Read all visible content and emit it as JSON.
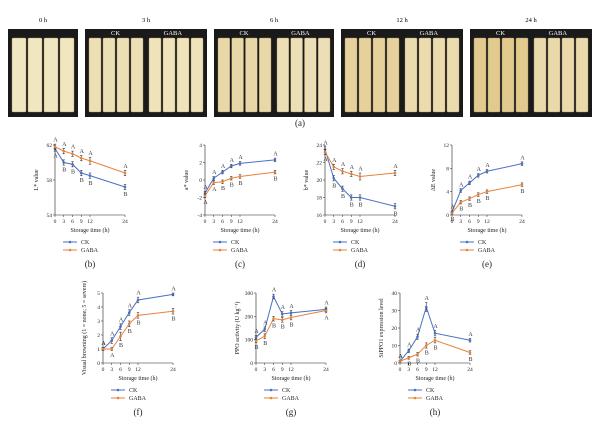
{
  "photos": {
    "panel_label": "(a)",
    "groups": [
      {
        "time": "0 h",
        "ck_label": "",
        "gaba_label": ""
      },
      {
        "time": "3 h",
        "ck_label": "CK",
        "gaba_label": "GABA"
      },
      {
        "time": "6 h",
        "ck_label": "CK",
        "gaba_label": "GABA"
      },
      {
        "time": "12 h",
        "ck_label": "CK",
        "gaba_label": "GABA"
      },
      {
        "time": "24 h",
        "ck_label": "CK",
        "gaba_label": "GABA"
      }
    ],
    "colors": {
      "background": "#1a1a1a",
      "strip_fresh": "#f0e6c0",
      "strip_brown": "#e2c98e"
    }
  },
  "colors": {
    "ck": "#4a6fc8",
    "gaba": "#e8823a"
  },
  "chart_data": [
    {
      "type": "line",
      "panel": "(b)",
      "xlabel": "Storage time (h)",
      "ylabel": "L* value",
      "x": [
        0,
        3,
        6,
        9,
        12,
        24
      ],
      "xticks": [
        "0",
        "3",
        "6",
        "9",
        "12",
        "24"
      ],
      "ylim": [
        54,
        62
      ],
      "yticks": [
        54,
        58,
        62
      ],
      "series": [
        {
          "name": "CK",
          "values": [
            61.6,
            60.0,
            59.8,
            58.8,
            58.5,
            57.2
          ],
          "err": [
            0.3,
            0.3,
            0.3,
            0.3,
            0.3,
            0.3
          ],
          "sig": [
            "A",
            "B",
            "B",
            "B",
            "B",
            "B"
          ]
        },
        {
          "name": "GABA",
          "values": [
            61.8,
            61.3,
            61.0,
            60.5,
            60.2,
            58.8
          ],
          "err": [
            0.3,
            0.3,
            0.3,
            0.3,
            0.4,
            0.3
          ],
          "sig": [
            "A",
            "A",
            "A",
            "A",
            "A",
            "A"
          ]
        }
      ]
    },
    {
      "type": "line",
      "panel": "(c)",
      "xlabel": "Storage time (h)",
      "ylabel": "a* value",
      "x": [
        0,
        3,
        6,
        9,
        12,
        24
      ],
      "xticks": [
        "0",
        "3",
        "6",
        "9",
        "12",
        "24"
      ],
      "ylim": [
        -4,
        4
      ],
      "yticks": [
        -4,
        -2,
        0,
        2,
        4
      ],
      "series": [
        {
          "name": "CK",
          "values": [
            -1.5,
            0.2,
            0.9,
            1.6,
            1.9,
            2.3
          ],
          "err": [
            0.2,
            0.2,
            0.2,
            0.2,
            0.2,
            0.2
          ],
          "sig": [
            "A",
            "A",
            "A",
            "A",
            "A",
            "A"
          ]
        },
        {
          "name": "GABA",
          "values": [
            -1.8,
            -0.3,
            -0.2,
            0.2,
            0.4,
            0.9
          ],
          "err": [
            0.2,
            0.2,
            0.2,
            0.2,
            0.2,
            0.2
          ],
          "sig": [
            "A",
            "A",
            "B",
            "B",
            "B",
            "B"
          ]
        }
      ]
    },
    {
      "type": "line",
      "panel": "(d)",
      "xlabel": "Storage time (h)",
      "ylabel": "b* value",
      "x": [
        0,
        3,
        6,
        9,
        12,
        24
      ],
      "xticks": [
        "0",
        "3",
        "6",
        "9",
        "12",
        "24"
      ],
      "ylim": [
        16,
        24
      ],
      "yticks": [
        16,
        18,
        20,
        22,
        24
      ],
      "series": [
        {
          "name": "CK",
          "values": [
            23.5,
            20.2,
            19.0,
            18.0,
            18.0,
            17.0
          ],
          "err": [
            0.3,
            0.3,
            0.3,
            0.3,
            0.3,
            0.3
          ],
          "sig": [
            "A",
            "B",
            "B",
            "B",
            "B",
            "B"
          ]
        },
        {
          "name": "GABA",
          "values": [
            23.2,
            21.5,
            21.0,
            20.7,
            20.4,
            20.8
          ],
          "err": [
            0.3,
            0.3,
            0.3,
            0.3,
            0.4,
            0.3
          ],
          "sig": [
            "A",
            "A",
            "A",
            "A",
            "A",
            "A"
          ]
        }
      ]
    },
    {
      "type": "line",
      "panel": "(e)",
      "xlabel": "Storage time (h)",
      "ylabel": "ΔE value",
      "x": [
        0,
        3,
        6,
        9,
        12,
        24
      ],
      "xticks": [
        "0",
        "3",
        "6",
        "9",
        "12",
        "24"
      ],
      "ylim": [
        0,
        12
      ],
      "yticks": [
        0,
        4,
        8,
        12
      ],
      "series": [
        {
          "name": "CK",
          "values": [
            0.5,
            4.2,
            5.5,
            6.8,
            7.5,
            8.8
          ],
          "err": [
            0.2,
            0.3,
            0.3,
            0.3,
            0.3,
            0.3
          ],
          "sig": [
            "A",
            "A",
            "A",
            "A",
            "A",
            "A"
          ]
        },
        {
          "name": "GABA",
          "values": [
            0.3,
            2.2,
            2.8,
            3.5,
            4.0,
            5.2
          ],
          "err": [
            0.2,
            0.3,
            0.3,
            0.3,
            0.3,
            0.3
          ],
          "sig": [
            "B",
            "B",
            "B",
            "B",
            "B",
            "B"
          ]
        }
      ]
    },
    {
      "type": "line",
      "panel": "(f)",
      "xlabel": "Storage time (h)",
      "ylabel": "Visual browning (1 = none; 5 = severe)",
      "x": [
        0,
        3,
        6,
        9,
        12,
        24
      ],
      "xticks": [
        "0",
        "3",
        "6",
        "9",
        "12",
        "24"
      ],
      "ylim": [
        0,
        5
      ],
      "yticks": [
        0,
        1,
        2,
        3,
        4,
        5
      ],
      "series": [
        {
          "name": "CK",
          "values": [
            1.0,
            1.6,
            2.6,
            3.6,
            4.5,
            4.9
          ],
          "err": [
            0.1,
            0.2,
            0.2,
            0.2,
            0.2,
            0.1
          ],
          "sig": [
            "A",
            "A",
            "A",
            "A",
            "A",
            "A"
          ]
        },
        {
          "name": "GABA",
          "values": [
            1.0,
            1.0,
            1.9,
            2.8,
            3.4,
            3.7
          ],
          "err": [
            0.1,
            0.1,
            0.3,
            0.2,
            0.2,
            0.2
          ],
          "sig": [
            "A",
            "A",
            "B",
            "B",
            "B",
            "B"
          ]
        }
      ]
    },
    {
      "type": "line",
      "panel": "(g)",
      "xlabel": "Storage time (h)",
      "ylabel": "PPO activity (U kg⁻¹)",
      "x": [
        0,
        3,
        6,
        9,
        12,
        24
      ],
      "xticks": [
        "0",
        "3",
        "6",
        "9",
        "12",
        "24"
      ],
      "ylim": [
        0,
        300
      ],
      "yticks": [
        0,
        100,
        200,
        300
      ],
      "series": [
        {
          "name": "CK",
          "values": [
            110,
            145,
            285,
            210,
            215,
            230
          ],
          "err": [
            8,
            10,
            10,
            10,
            10,
            10
          ],
          "sig": [
            "A",
            "A",
            "A",
            "A",
            "A",
            "A"
          ]
        },
        {
          "name": "GABA",
          "values": [
            95,
            115,
            190,
            185,
            195,
            225
          ],
          "err": [
            8,
            10,
            10,
            10,
            10,
            10
          ],
          "sig": [
            "B",
            "B",
            "B",
            "B",
            "B",
            "A"
          ]
        }
      ]
    },
    {
      "type": "line",
      "panel": "(h)",
      "xlabel": "Storage time (h)",
      "ylabel": "StPPO1 expression level",
      "x": [
        0,
        3,
        6,
        9,
        12,
        24
      ],
      "xticks": [
        "0",
        "3",
        "6",
        "9",
        "12",
        "24"
      ],
      "ylim": [
        0,
        40
      ],
      "yticks": [
        0,
        10,
        20,
        30,
        40
      ],
      "series": [
        {
          "name": "CK",
          "values": [
            1,
            7,
            15,
            32,
            17,
            13
          ],
          "err": [
            0.5,
            1.0,
            1.5,
            2.5,
            1.5,
            1.0
          ],
          "sig": [
            "A",
            "A",
            "A",
            "A",
            "A",
            "A"
          ]
        },
        {
          "name": "GABA",
          "values": [
            1,
            3,
            5,
            10,
            13,
            6
          ],
          "err": [
            0.5,
            0.8,
            1.0,
            1.5,
            1.5,
            1.0
          ],
          "sig": [
            "A",
            "B",
            "B",
            "B",
            "B",
            "B"
          ]
        }
      ]
    }
  ]
}
